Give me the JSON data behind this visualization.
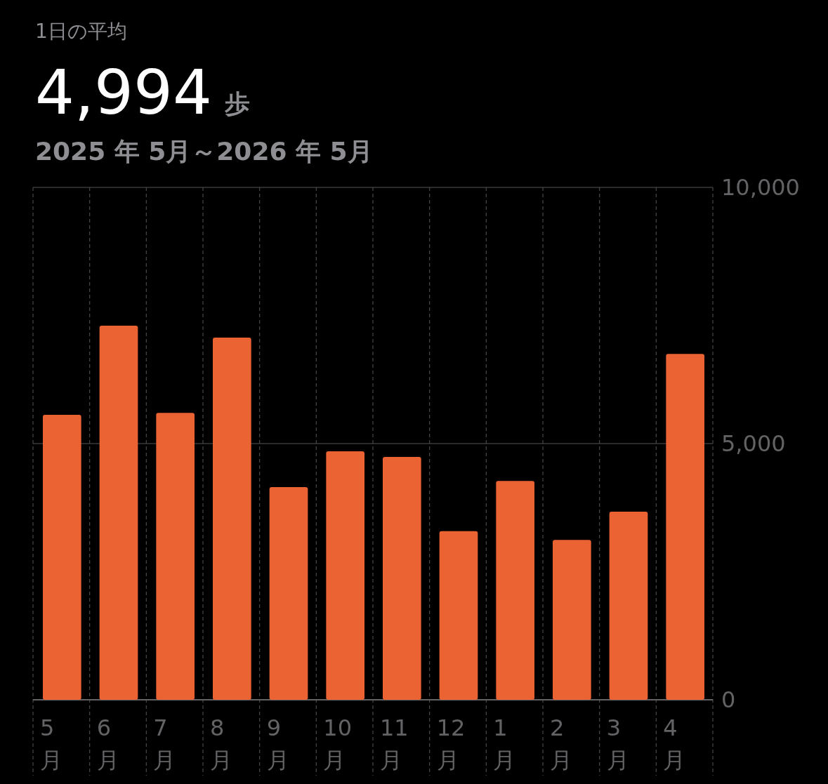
{
  "chart_data": {
    "type": "bar",
    "title": "1日の平均",
    "annotations": [
      "4,994",
      "歩",
      "2025 年 5月～2026 年 5月"
    ],
    "categories": [
      "5月",
      "6月",
      "7月",
      "8月",
      "9月",
      "10月",
      "11月",
      "12月",
      "1月",
      "2月",
      "3月",
      "4月"
    ],
    "values": [
      5560,
      7300,
      5600,
      7070,
      4150,
      4850,
      4740,
      3290,
      4270,
      3120,
      3670,
      6750
    ],
    "color": "#eb6233",
    "ylim": [
      0,
      10000
    ],
    "yticks": [
      {
        "value": 0,
        "label": "0"
      },
      {
        "value": 5000,
        "label": "5,000"
      },
      {
        "value": 10000,
        "label": "10,000"
      }
    ],
    "grid": true
  }
}
